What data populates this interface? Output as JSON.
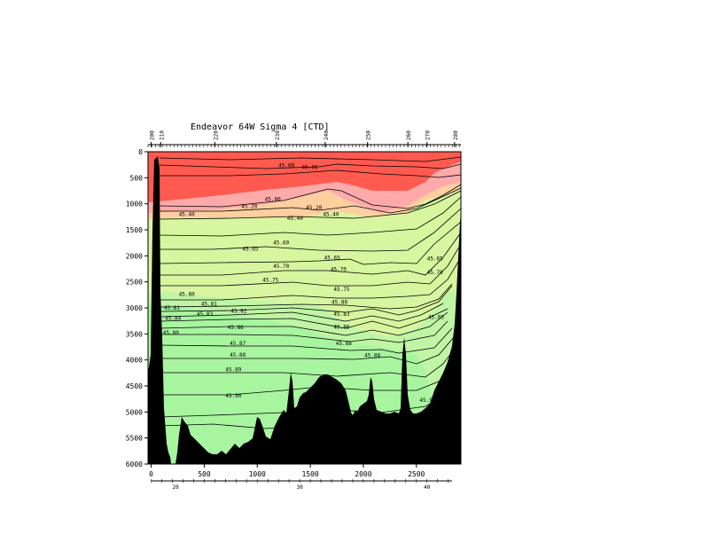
{
  "chart_data": {
    "type": "contour-section",
    "title": "Endeavor 64W Sigma 4 [CTD]",
    "xlim": [
      -30,
      2920
    ],
    "ylim": [
      0,
      6000
    ],
    "y_reversed": true,
    "x_ticks": [
      0,
      500,
      1000,
      1500,
      2000,
      2500
    ],
    "y_ticks": [
      0,
      500,
      1000,
      1500,
      2000,
      2500,
      3000,
      3500,
      4000,
      4500,
      5000,
      5500,
      6000
    ],
    "station_ticks": [
      {
        "x": 0,
        "label": "200"
      },
      {
        "x": 90,
        "label": "210"
      },
      {
        "x": 600,
        "label": "220"
      },
      {
        "x": 1180,
        "label": "230"
      },
      {
        "x": 1640,
        "label": "240"
      },
      {
        "x": 2040,
        "label": "250"
      },
      {
        "x": 2420,
        "label": "260"
      },
      {
        "x": 2600,
        "label": "270"
      },
      {
        "x": 2860,
        "label": "280"
      }
    ],
    "lat_ticks": [
      {
        "x": 230,
        "label": "20"
      },
      {
        "x": 1400,
        "label": "30"
      },
      {
        "x": 2600,
        "label": "40"
      }
    ],
    "colors": {
      "band_top": "#ff5a50",
      "band_mid": "#ffaaaa",
      "band_peach": "#ffcfa0",
      "band_yellow": "#d8f5a0",
      "band_lightgreen": "#bff5a5",
      "band_green": "#a8f5a0",
      "bottom": "#000000"
    },
    "contour_labels": [
      {
        "text": "45.00",
        "x": 1200,
        "y": 300
      },
      {
        "text": "45.00",
        "x": 1420,
        "y": 330
      },
      {
        "text": "45.00",
        "x": 1070,
        "y": 950
      },
      {
        "text": "45.20",
        "x": 850,
        "y": 1080
      },
      {
        "text": "45.20",
        "x": 1460,
        "y": 1110
      },
      {
        "text": "45.40",
        "x": 260,
        "y": 1240
      },
      {
        "text": "45.40",
        "x": 1280,
        "y": 1310
      },
      {
        "text": "45.40",
        "x": 1620,
        "y": 1240
      },
      {
        "text": "45.60",
        "x": 1150,
        "y": 1780
      },
      {
        "text": "45.65",
        "x": 860,
        "y": 1900
      },
      {
        "text": "45.65",
        "x": 1630,
        "y": 2070
      },
      {
        "text": "45.65",
        "x": 2600,
        "y": 2090
      },
      {
        "text": "45.70",
        "x": 1150,
        "y": 2230
      },
      {
        "text": "45.70",
        "x": 1690,
        "y": 2290
      },
      {
        "text": "45.70",
        "x": 2600,
        "y": 2350
      },
      {
        "text": "45.75",
        "x": 1050,
        "y": 2500
      },
      {
        "text": "45.75",
        "x": 1720,
        "y": 2680
      },
      {
        "text": "45.80",
        "x": 260,
        "y": 2770
      },
      {
        "text": "45.80",
        "x": 1700,
        "y": 2920
      },
      {
        "text": "45.81",
        "x": 120,
        "y": 3030
      },
      {
        "text": "45.81",
        "x": 470,
        "y": 2960
      },
      {
        "text": "45.82",
        "x": 750,
        "y": 3090
      },
      {
        "text": "45.83",
        "x": 430,
        "y": 3150
      },
      {
        "text": "45.83",
        "x": 1720,
        "y": 3150
      },
      {
        "text": "45.84",
        "x": 130,
        "y": 3230
      },
      {
        "text": "45.86",
        "x": 720,
        "y": 3410
      },
      {
        "text": "45.86",
        "x": 1720,
        "y": 3400
      },
      {
        "text": "45.85",
        "x": 2610,
        "y": 3210
      },
      {
        "text": "45.88",
        "x": 1740,
        "y": 3720
      },
      {
        "text": "45.88",
        "x": 2010,
        "y": 3950
      },
      {
        "text": "45.87",
        "x": 740,
        "y": 3720
      },
      {
        "text": "45.88",
        "x": 740,
        "y": 3940
      },
      {
        "text": "45.89",
        "x": 700,
        "y": 4220
      },
      {
        "text": "45.90",
        "x": 700,
        "y": 4720
      },
      {
        "text": "45.90",
        "x": 2530,
        "y": 4810
      },
      {
        "text": "45.80",
        "x": 110,
        "y": 3510
      }
    ]
  }
}
